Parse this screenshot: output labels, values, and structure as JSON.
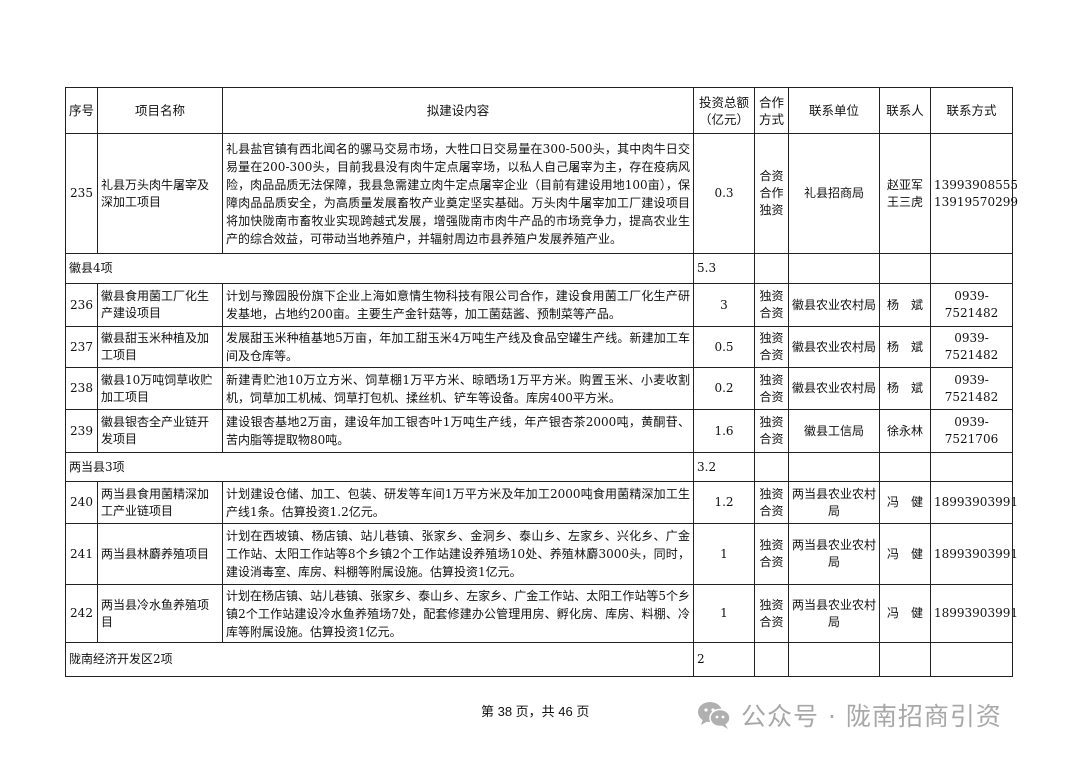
{
  "table": {
    "headers": [
      "序号",
      "项目名称",
      "拟建设内容",
      "投资总额（亿元）",
      "合作方式",
      "联系单位",
      "联系人",
      "联系方式"
    ],
    "rows": [
      {
        "type": "item",
        "no": "235",
        "name": "礼县万头肉牛屠宰及深加工项目",
        "content": "礼县盐官镇有西北闻名的骡马交易市场，大牲口日交易量在300-500头，其中肉牛日交易量在200-300头，目前我县没有肉牛定点屠宰场，以私人自己屠宰为主，存在疫病风险，肉品品质无法保障，我县急需建立肉牛定点屠宰企业（目前有建设用地100亩），保障肉品品质安全，为高质量发展畜牧产业奠定坚实基础。万头肉牛屠宰加工厂建设项目将加快陇南市畜牧业实现跨越式发展，增强陇南市肉牛产品的市场竞争力，提高农业生产的综合效益，可带动当地养殖户，并辐射周边市县养殖户发展养殖产业。",
        "amount": "0.3",
        "mode": "合资合作独资",
        "unit": "礼县招商局",
        "person": "赵亚军 王三虎",
        "phone": "13993908555 13919570299"
      },
      {
        "type": "group",
        "label": "徽县4项",
        "amount": "5.3"
      },
      {
        "type": "item",
        "no": "236",
        "name": "徽县食用菌工厂化生产建设项目",
        "content": "计划与豫园股份旗下企业上海如意情生物科技有限公司合作，建设食用菌工厂化生产研发基地，占地约200亩。主要生产金针菇等，加工菌菇酱、预制菜等产品。",
        "amount": "3",
        "mode": "独资合资",
        "unit": "徽县农业农村局",
        "person": "杨　斌",
        "phone": "0939-7521482"
      },
      {
        "type": "item",
        "no": "237",
        "name": "徽县甜玉米种植及加工项目",
        "content": "发展甜玉米种植基地5万亩，年加工甜玉米4万吨生产线及食品空罐生产线。新建加工车间及仓库等。",
        "amount": "0.5",
        "mode": "独资合资",
        "unit": "徽县农业农村局",
        "person": "杨　斌",
        "phone": "0939-7521482"
      },
      {
        "type": "item",
        "no": "238",
        "name": "徽县10万吨饲草收贮加工项目",
        "content": "新建青贮池10万立方米、饲草棚1万平方米、晾晒场1万平方米。购置玉米、小麦收割机，饲草加工机械、饲草打包机、揉丝机、铲车等设备。库房400平方米。",
        "amount": "0.2",
        "mode": "独资合资",
        "unit": "徽县农业农村局",
        "person": "杨　斌",
        "phone": "0939-7521482"
      },
      {
        "type": "item",
        "no": "239",
        "name": "徽县银杏全产业链开发项目",
        "content": "建设银杏基地2万亩，建设年加工银杏叶1万吨生产线，年产银杏茶2000吨，黄酮苷、苦内脂等提取物80吨。",
        "amount": "1.6",
        "mode": "独资合资",
        "unit": "徽县工信局",
        "person": "徐永林",
        "phone": "0939-7521706"
      },
      {
        "type": "group",
        "label": "两当县3项",
        "amount": "3.2"
      },
      {
        "type": "item",
        "no": "240",
        "name": "两当县食用菌精深加工产业链项目",
        "content": "计划建设仓储、加工、包装、研发等车间1万平方米及年加工2000吨食用菌精深加工生产线1条。估算投资1.2亿元。",
        "amount": "1.2",
        "mode": "独资合资",
        "unit": "两当县农业农村局",
        "person": "冯　健",
        "phone": "18993903991"
      },
      {
        "type": "item",
        "no": "241",
        "name": "两当县林麝养殖项目",
        "content": "计划在西坡镇、杨店镇、站儿巷镇、张家乡、金洞乡、泰山乡、左家乡、兴化乡、广金工作站、太阳工作站等8个乡镇2个工作站建设养殖场10处、养殖林麝3000头，同时，建设消毒室、库房、料棚等附属设施。估算投资1亿元。",
        "amount": "1",
        "mode": "独资合资",
        "unit": "两当县农业农村局",
        "person": "冯　健",
        "phone": "18993903991"
      },
      {
        "type": "item",
        "no": "242",
        "name": "两当县冷水鱼养殖项目",
        "content": "计划在杨店镇、站儿巷镇、张家乡、泰山乡、左家乡、广金工作站、太阳工作站等5个乡镇2个工作站建设冷水鱼养殖场7处，配套修建办公管理用房、孵化房、库房、料棚、冷库等附属设施。估算投资1亿元。",
        "amount": "1",
        "mode": "独资合资",
        "unit": "两当县农业农村局",
        "person": "冯　健",
        "phone": "18993903991"
      },
      {
        "type": "group",
        "label": "陇南经济开发区2项",
        "amount": "2"
      }
    ]
  },
  "footer": {
    "page_text": "第 38 页，共 46 页"
  },
  "watermark": {
    "icon": "wechat-icon",
    "text": "公众号 · 陇南招商引资"
  }
}
